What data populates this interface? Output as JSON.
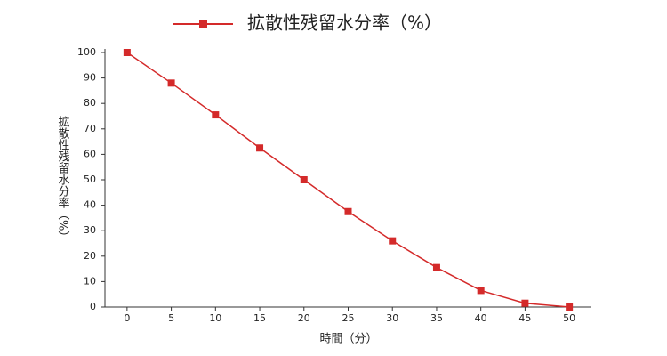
{
  "chart_data": {
    "type": "line",
    "x_label": "時間（分）",
    "y_label": "拡散性残留水分率（%）",
    "x": [
      0,
      5,
      10,
      15,
      20,
      25,
      30,
      35,
      40,
      45,
      50
    ],
    "series": [
      {
        "name": "拡散性残留水分率（%）",
        "color": "#d42a2a",
        "values": [
          100,
          88,
          75.5,
          62.5,
          50,
          37.5,
          26,
          15.5,
          6.5,
          1.5,
          0
        ]
      }
    ],
    "xlim": [
      -2.5,
      52.5
    ],
    "xticks": [
      0,
      5,
      10,
      15,
      20,
      25,
      30,
      35,
      40,
      45,
      50
    ],
    "ylim": [
      0,
      100
    ],
    "yticks": [
      0,
      10,
      20,
      30,
      40,
      50,
      60,
      70,
      80,
      90,
      100
    ],
    "legend": "top"
  }
}
